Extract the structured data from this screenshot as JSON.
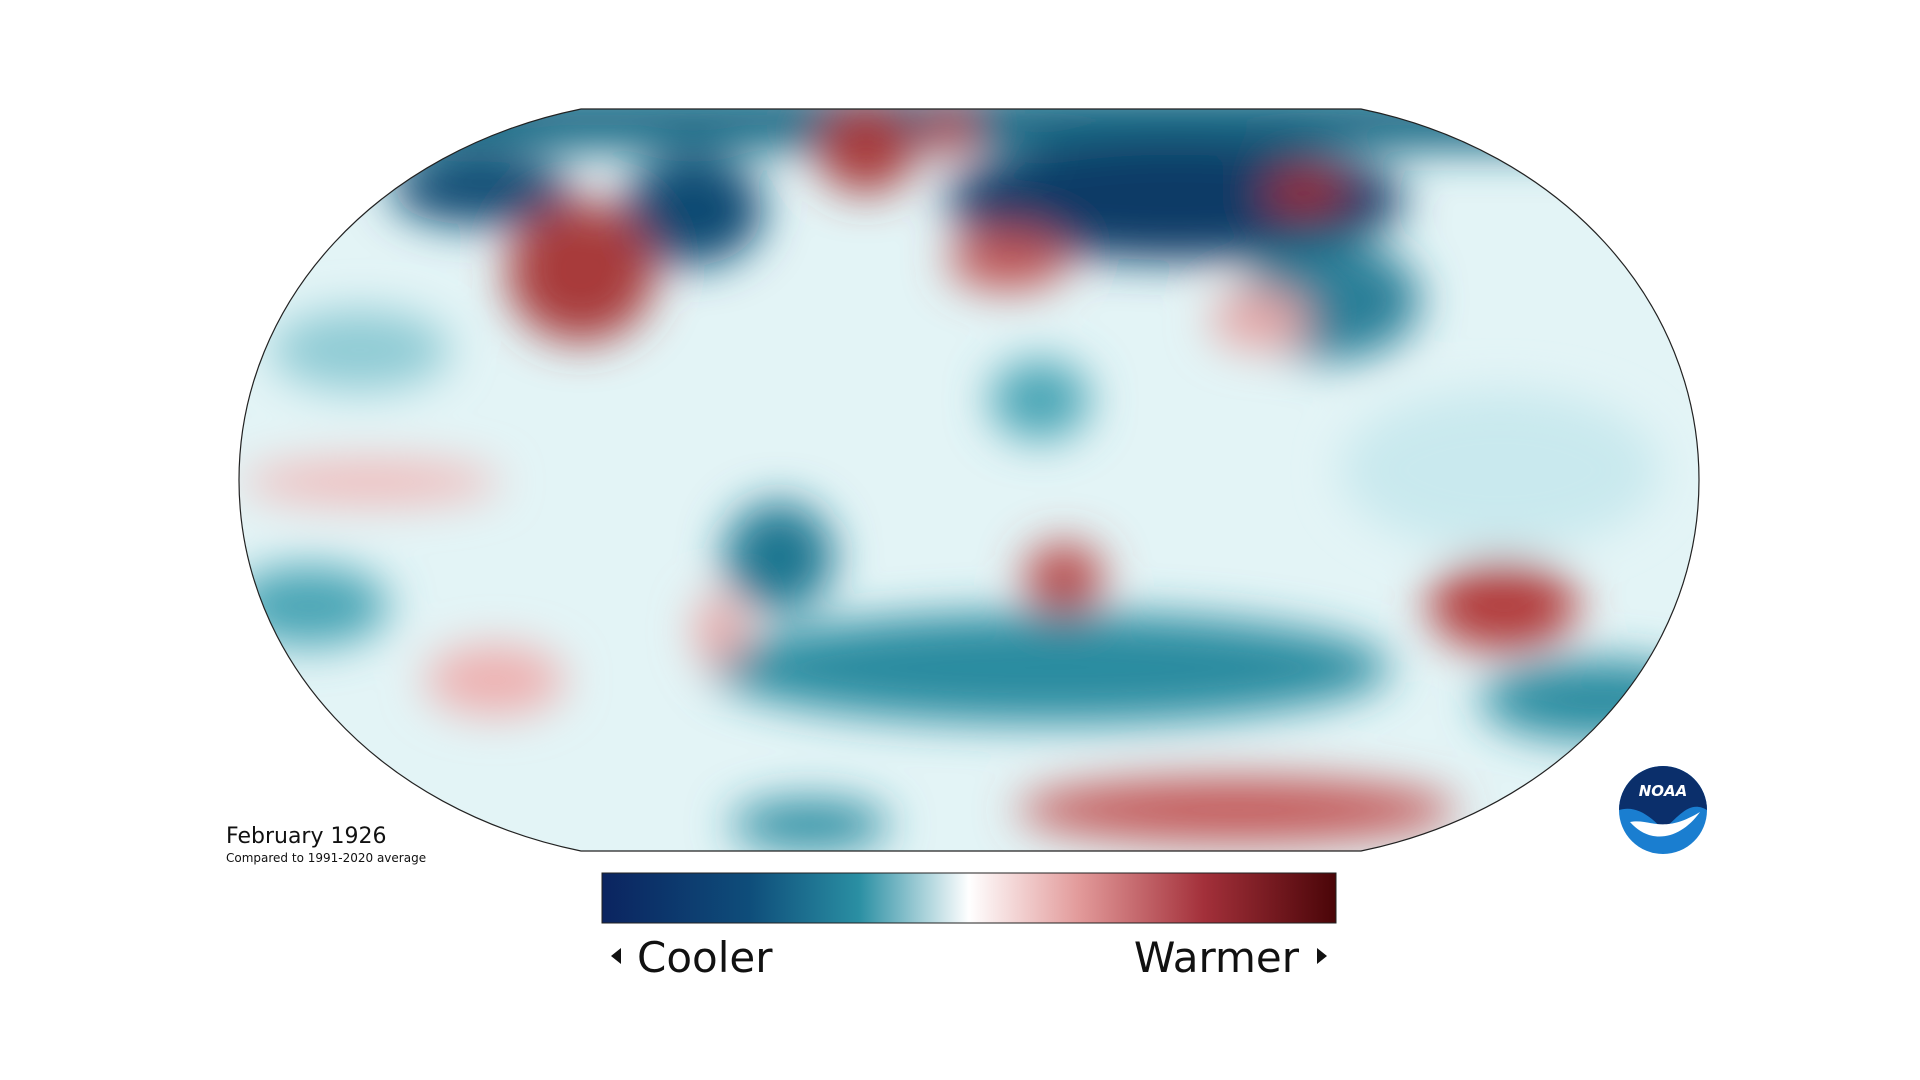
{
  "title": "February 1926",
  "subtitle": "Compared to 1991-2020 average",
  "legend": {
    "low": "Cooler",
    "high": "Warmer"
  },
  "logo": "NOAA"
}
